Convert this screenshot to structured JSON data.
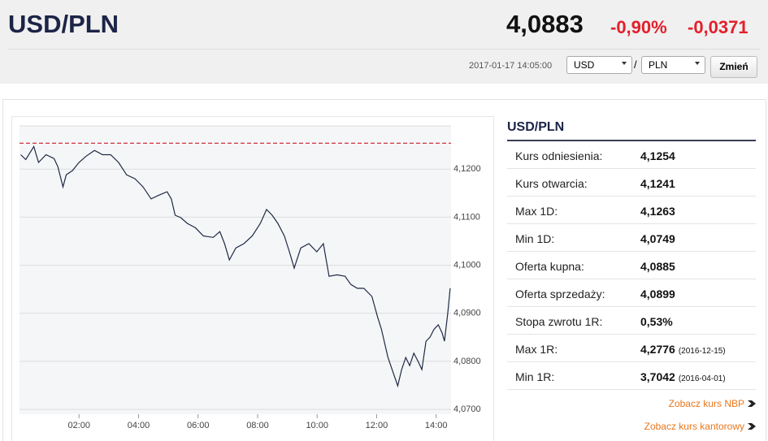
{
  "header": {
    "pair": "USD/PLN",
    "rate": "4,0883",
    "change_pct": "-0,90%",
    "change_abs": "-0,0371",
    "timestamp": "2017-01-17 14:05:00",
    "from": "USD",
    "separator": "/",
    "to": "PLN",
    "button": "Zmień"
  },
  "chart_data": {
    "type": "line",
    "x": [
      0.04,
      0.21,
      0.48,
      0.64,
      0.89,
      1.16,
      1.29,
      1.46,
      1.57,
      1.78,
      2,
      2.24,
      2.52,
      2.79,
      3.06,
      3.33,
      3.6,
      3.88,
      4.15,
      4.42,
      4.69,
      4.96,
      5.1,
      5.23,
      5.42,
      5.64,
      5.91,
      6.18,
      6.51,
      6.73,
      6.89,
      7.05,
      7.27,
      7.54,
      7.82,
      8.09,
      8.3,
      8.49,
      8.68,
      8.9,
      9.07,
      9.23,
      9.45,
      9.72,
      9.99,
      10.21,
      10.4,
      10.67,
      10.94,
      11.13,
      11.35,
      11.57,
      11.84,
      12.03,
      12.16,
      12.38,
      12.57,
      12.71,
      12.84,
      12.98,
      13.11,
      13.25,
      13.39,
      13.52,
      13.66,
      13.79,
      13.93,
      14.07,
      14.2,
      14.28,
      14.39,
      14.47
    ],
    "series": [
      {
        "color": "#1e2a44",
        "values": [
          4.123,
          4.122,
          4.1247,
          4.1214,
          4.123,
          4.1222,
          4.1205,
          4.1163,
          4.1188,
          4.1197,
          4.1214,
          4.1227,
          4.1239,
          4.123,
          4.123,
          4.1214,
          4.1188,
          4.118,
          4.1163,
          4.1138,
          4.1146,
          4.1153,
          4.1138,
          4.1104,
          4.1099,
          4.1087,
          4.1078,
          4.1061,
          4.1058,
          4.107,
          4.1045,
          4.1011,
          4.1036,
          4.1045,
          4.1061,
          4.1087,
          4.1116,
          4.1104,
          4.1087,
          4.1061,
          4.1028,
          4.0994,
          4.1036,
          4.1045,
          4.1028,
          4.1045,
          4.0977,
          4.098,
          4.0977,
          4.096,
          4.0952,
          4.0952,
          4.0935,
          4.0893,
          4.0867,
          4.0808,
          4.0774,
          4.0749,
          4.0783,
          4.0808,
          4.0791,
          4.0817,
          4.08,
          4.0783,
          4.0842,
          4.085,
          4.0867,
          4.0876,
          4.0859,
          4.0842,
          4.0901,
          4.0952
        ]
      }
    ],
    "xlim": [
      0,
      14.5
    ],
    "xticks": [
      {
        "value": 2,
        "label": "02:00"
      },
      {
        "value": 4,
        "label": "04:00"
      },
      {
        "value": 6,
        "label": "06:00"
      },
      {
        "value": 8,
        "label": "08:00"
      },
      {
        "value": 10,
        "label": "10:00"
      },
      {
        "value": 12,
        "label": "12:00"
      },
      {
        "value": 14,
        "label": "14:00"
      }
    ],
    "ylim": [
      4.069,
      4.129
    ],
    "yticks": [
      {
        "value": 4.12,
        "label": "4,1200"
      },
      {
        "value": 4.11,
        "label": "4,1100"
      },
      {
        "value": 4.1,
        "label": "4,1000"
      },
      {
        "value": 4.09,
        "label": "4,0900"
      },
      {
        "value": 4.08,
        "label": "4,0800"
      },
      {
        "value": 4.07,
        "label": "4,0700"
      }
    ],
    "grid": true,
    "reference_line": {
      "value": 4.1254,
      "color": "#c8202a"
    }
  },
  "info": {
    "title": "USD/PLN",
    "rows": [
      [
        "Kurs odniesienia:",
        "4,1254"
      ],
      [
        "Kurs otwarcia:",
        "4,1241"
      ],
      [
        "Max 1D:",
        "4,1263"
      ],
      [
        "Min 1D:",
        "4,0749"
      ],
      [
        "Oferta kupna:",
        "4,0885"
      ],
      [
        "Oferta sprzedaży:",
        "4,0899"
      ],
      [
        "Stopa zwrotu 1R:",
        "0,53%"
      ],
      [
        "Max 1R:",
        "4,2776",
        "(2016-12-15)"
      ],
      [
        "Min 1R:",
        "3,7042",
        "(2016-04-01)"
      ]
    ],
    "links": [
      "Zobacz kurs NBP",
      "Zobacz kurs kantorowy"
    ]
  }
}
